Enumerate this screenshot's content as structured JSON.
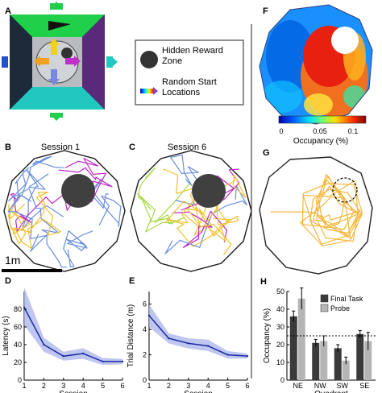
{
  "panel_labels": {
    "A": "A",
    "B": "B",
    "C": "C",
    "D": "D",
    "E": "E",
    "F": "F",
    "G": "G",
    "H": "H"
  },
  "legend_a": {
    "reward_label": "Hidden Reward\nZone",
    "start_label": "Random Start\nLocations"
  },
  "session_titles": {
    "b": "Session 1",
    "c": "Session 6"
  },
  "scale_bar_label": "1m",
  "colors": {
    "wall_outline": "#1a1a1a",
    "reward_zone": "#404040",
    "path_blue": "#6b8fe0",
    "path_magenta": "#c028c8",
    "path_yellow": "#f2c230",
    "path_green": "#a8d848",
    "path_orange": "#f5b73c",
    "line_series": "#1a2aa0",
    "band_series": "#aab4ec",
    "bar_final": "#3a3a3a",
    "bar_probe": "#b5b5b5",
    "chance_line": "#000000"
  },
  "heatmap": {
    "colorbar_ticks": [
      "0",
      "0.05",
      "0.1"
    ],
    "colorbar_label": "Occupancy (%)"
  },
  "chart_data": [
    {
      "type": "line",
      "panel": "D",
      "title": "",
      "xlabel": "Session",
      "ylabel": "Latency (s)",
      "x": [
        1,
        2,
        3,
        4,
        5,
        6
      ],
      "values": [
        82,
        40,
        27,
        30,
        21,
        21
      ],
      "band_upper": [
        105,
        48,
        32,
        36,
        25,
        24
      ],
      "band_lower": [
        62,
        32,
        22,
        24,
        17,
        18
      ],
      "xlim": [
        1,
        6
      ],
      "ylim": [
        0,
        100
      ],
      "xticks": [
        "1",
        "2",
        "3",
        "4",
        "5",
        "6"
      ],
      "yticks": [
        "0",
        "20",
        "40",
        "60",
        "80"
      ]
    },
    {
      "type": "line",
      "panel": "E",
      "title": "",
      "xlabel": "Session",
      "ylabel": "Trial Distance (m)",
      "x": [
        1,
        2,
        3,
        4,
        5,
        6
      ],
      "values": [
        5.1,
        3.3,
        2.9,
        2.7,
        2.0,
        1.9
      ],
      "band_upper": [
        6.0,
        3.7,
        3.3,
        3.2,
        2.3,
        2.1
      ],
      "band_lower": [
        4.2,
        2.9,
        2.5,
        2.3,
        1.7,
        1.7
      ],
      "xlim": [
        1,
        6
      ],
      "ylim": [
        0,
        7
      ],
      "xticks": [
        "1",
        "2",
        "3",
        "4",
        "5",
        "6"
      ],
      "yticks": [
        "0",
        "2",
        "4",
        "6"
      ]
    },
    {
      "type": "bar",
      "panel": "H",
      "title": "",
      "xlabel": "Quadrant",
      "ylabel": "Occupancy (%)",
      "categories": [
        "NE",
        "NW",
        "SW",
        "SE"
      ],
      "series": [
        {
          "name": "Final Task",
          "values": [
            36,
            21,
            18,
            26
          ],
          "errors": [
            3,
            2,
            2,
            2
          ]
        },
        {
          "name": "Probe",
          "values": [
            46,
            22,
            11,
            22
          ],
          "errors": [
            6,
            3,
            2,
            5
          ]
        }
      ],
      "chance_level": 25,
      "ylim": [
        0,
        50
      ],
      "yticks": [
        "0",
        "10",
        "20",
        "30",
        "40",
        "50"
      ],
      "legend": "top-right"
    }
  ]
}
